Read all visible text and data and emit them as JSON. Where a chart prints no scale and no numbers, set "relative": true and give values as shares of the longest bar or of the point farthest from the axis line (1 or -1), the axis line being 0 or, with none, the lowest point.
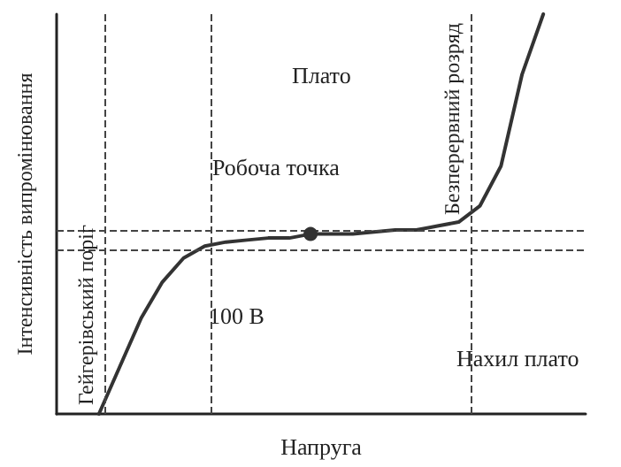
{
  "chart_data": {
    "type": "line",
    "relative": true,
    "xlabel": "Напруга",
    "ylabel": "Інтенсивність випромінювання",
    "categories": [
      null,
      null,
      null,
      null,
      null,
      null,
      null,
      null,
      null,
      null,
      null,
      null,
      null,
      null,
      null,
      null,
      null,
      null,
      null,
      null,
      null,
      null,
      null,
      null,
      null,
      null
    ],
    "series": [
      {
        "color": "#333333",
        "values": [
          null,
          null,
          0,
          0.12,
          0.24,
          0.33,
          0.39,
          0.42,
          0.43,
          0.435,
          0.44,
          0.44,
          0.45,
          0.45,
          0.45,
          0.455,
          0.46,
          0.46,
          0.47,
          0.48,
          0.52,
          0.62,
          0.85,
          1.0,
          null,
          null
        ]
      }
    ],
    "ref_lines": [
      {
        "axis": "y",
        "value": 0.46,
        "label": null,
        "line_style": "dashed"
      },
      {
        "axis": "y",
        "value": 0.41,
        "label": null,
        "line_style": "dashed"
      }
    ],
    "annotations": [
      "Плато",
      {
        "text": "Робоча точка",
        "y": 0.45
      },
      "100 В",
      "Нахил плато",
      "Гейгерівський поріг",
      "Безперервний розряд"
    ],
    "grid": false,
    "marker": "none",
    "line_style": "solid"
  }
}
